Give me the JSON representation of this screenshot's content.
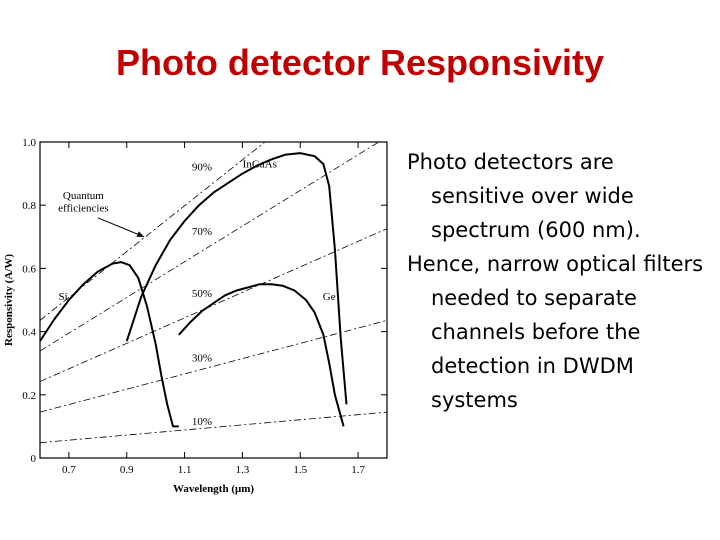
{
  "slide": {
    "title": "Photo detector Responsivity",
    "bullets": [
      "Photo detectors are sensitive over wide spectrum (600 nm).",
      "Hence, narrow optical filters needed to separate channels before the detection in DWDM systems"
    ]
  },
  "chart_data": {
    "type": "line",
    "title": "",
    "xlabel": "Wavelength (μm)",
    "ylabel": "Responsivity (A/W)",
    "xlim": [
      0.6,
      1.8
    ],
    "ylim": [
      0,
      1.0
    ],
    "xticks": [
      0.7,
      0.9,
      1.1,
      1.3,
      1.5,
      1.7
    ],
    "xtick_labels": [
      "0.7",
      "0.9",
      "1.1",
      "1.3",
      "1.5",
      "1.7"
    ],
    "yticks": [
      0,
      0.2,
      0.4,
      0.6,
      0.8,
      1.0
    ],
    "ytick_labels": [
      "0",
      "0.2",
      "0.4",
      "0.6",
      "0.8",
      "1.0"
    ],
    "grid": false,
    "efficiency_lines": [
      {
        "label": "10%",
        "efficiency": 0.1
      },
      {
        "label": "30%",
        "efficiency": 0.3
      },
      {
        "label": "50%",
        "efficiency": 0.5
      },
      {
        "label": "70%",
        "efficiency": 0.7
      },
      {
        "label": "90%",
        "efficiency": 0.9
      }
    ],
    "series": [
      {
        "name": "Si",
        "x": [
          0.6,
          0.65,
          0.7,
          0.75,
          0.8,
          0.85,
          0.88,
          0.91,
          0.94,
          0.97,
          1.0,
          1.02,
          1.04,
          1.06,
          1.08
        ],
        "y": [
          0.37,
          0.44,
          0.5,
          0.55,
          0.59,
          0.615,
          0.62,
          0.61,
          0.57,
          0.48,
          0.36,
          0.26,
          0.17,
          0.1,
          0.1
        ]
      },
      {
        "name": "InGaAs",
        "x": [
          0.9,
          0.95,
          1.0,
          1.05,
          1.1,
          1.15,
          1.2,
          1.25,
          1.3,
          1.35,
          1.4,
          1.45,
          1.5,
          1.55,
          1.58,
          1.6,
          1.62,
          1.64,
          1.66
        ],
        "y": [
          0.37,
          0.51,
          0.61,
          0.69,
          0.75,
          0.8,
          0.84,
          0.87,
          0.9,
          0.925,
          0.945,
          0.96,
          0.965,
          0.955,
          0.93,
          0.86,
          0.66,
          0.38,
          0.17
        ]
      },
      {
        "name": "Ge",
        "x": [
          1.08,
          1.12,
          1.16,
          1.2,
          1.24,
          1.28,
          1.32,
          1.36,
          1.4,
          1.44,
          1.48,
          1.52,
          1.55,
          1.58,
          1.6,
          1.62,
          1.65
        ],
        "y": [
          0.39,
          0.43,
          0.465,
          0.49,
          0.515,
          0.53,
          0.54,
          0.55,
          0.55,
          0.545,
          0.53,
          0.5,
          0.46,
          0.39,
          0.3,
          0.2,
          0.1
        ]
      }
    ],
    "series_labels": [
      {
        "text": "Si",
        "x": 0.68,
        "y": 0.5
      },
      {
        "text": "InGaAs",
        "x": 1.36,
        "y": 0.92
      },
      {
        "text": "Ge",
        "x": 1.6,
        "y": 0.5
      }
    ],
    "efficiency_labels": [
      {
        "text": "90%",
        "x": 1.16,
        "y": 0.91
      },
      {
        "text": "70%",
        "x": 1.16,
        "y": 0.705
      },
      {
        "text": "50%",
        "x": 1.16,
        "y": 0.51
      },
      {
        "text": "30%",
        "x": 1.16,
        "y": 0.305
      },
      {
        "text": "10%",
        "x": 1.16,
        "y": 0.105
      }
    ],
    "annotations": [
      {
        "text": "Quantum",
        "x": 0.75,
        "y": 0.82
      },
      {
        "text": "efficiencies",
        "x": 0.75,
        "y": 0.78
      }
    ]
  }
}
